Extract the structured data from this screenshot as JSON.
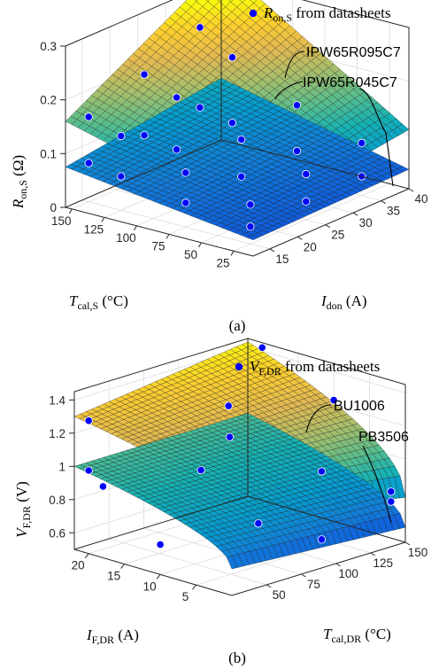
{
  "chart_data": [
    {
      "type": "surface3d",
      "panel_label": "(a)",
      "xlabel": {
        "main": "T",
        "sub": "cal,S",
        "unit": " (°C)"
      },
      "ylabel": {
        "main": "I",
        "sub": "don",
        "unit": " (A)"
      },
      "zlabel": {
        "main": "R",
        "sub": "on,S",
        "unit": " (Ω)"
      },
      "x_ticks": [
        "25",
        "50",
        "75",
        "100",
        "125",
        "150"
      ],
      "y_ticks": [
        "15",
        "20",
        "25",
        "30",
        "35",
        "40"
      ],
      "z_ticks": [
        "0",
        "0.1",
        "0.2",
        "0.3"
      ],
      "xlim": [
        10,
        155
      ],
      "ylim": [
        12,
        40
      ],
      "zlim": [
        0,
        0.3
      ],
      "legend": {
        "main": "R",
        "sub": "on,S",
        "rest": " from datasheets",
        "position": "top-right",
        "marker_color": "#0000ff"
      },
      "series": [
        {
          "name": "IPW65R095C7",
          "surface": {
            "x": [
              10,
              155
            ],
            "y": [
              12,
              40
            ],
            "z_low_T_low_I": 0.07,
            "z_high_T_low_I": 0.16,
            "z_low_T_high_I": 0.11,
            "z_high_T_high_I": 0.305
          },
          "points": [
            {
              "x": 25,
              "y": 15,
              "z": 0.073
            },
            {
              "x": 25,
              "y": 25,
              "z": 0.085
            },
            {
              "x": 25,
              "y": 35,
              "z": 0.098
            },
            {
              "x": 75,
              "y": 15,
              "z": 0.101
            },
            {
              "x": 75,
              "y": 25,
              "z": 0.118
            },
            {
              "x": 75,
              "y": 35,
              "z": 0.137
            },
            {
              "x": 125,
              "y": 15,
              "z": 0.138
            },
            {
              "x": 125,
              "y": 25,
              "z": 0.165
            },
            {
              "x": 125,
              "y": 35,
              "z": 0.195
            },
            {
              "x": 150,
              "y": 15,
              "z": 0.158
            },
            {
              "x": 150,
              "y": 25,
              "z": 0.192
            },
            {
              "x": 150,
              "y": 35,
              "z": 0.235
            }
          ]
        },
        {
          "name": "IPW65R045C7",
          "surface": {
            "x": [
              10,
              155
            ],
            "y": [
              12,
              40
            ],
            "z_low_T_low_I": 0.03,
            "z_high_T_low_I": 0.075,
            "z_low_T_high_I": 0.036,
            "z_high_T_high_I": 0.095
          },
          "points": [
            {
              "x": 25,
              "y": 15,
              "z": 0.032
            },
            {
              "x": 25,
              "y": 25,
              "z": 0.034
            },
            {
              "x": 25,
              "y": 35,
              "z": 0.036
            },
            {
              "x": 75,
              "y": 15,
              "z": 0.045
            },
            {
              "x": 75,
              "y": 25,
              "z": 0.049
            },
            {
              "x": 75,
              "y": 35,
              "z": 0.052
            },
            {
              "x": 125,
              "y": 15,
              "z": 0.063
            },
            {
              "x": 125,
              "y": 25,
              "z": 0.068
            },
            {
              "x": 125,
              "y": 35,
              "z": 0.073
            },
            {
              "x": 150,
              "y": 15,
              "z": 0.072
            },
            {
              "x": 150,
              "y": 25,
              "z": 0.079
            },
            {
              "x": 150,
              "y": 35,
              "z": 0.086
            }
          ]
        }
      ],
      "colormap": "parula",
      "grid": true
    },
    {
      "type": "surface3d",
      "panel_label": "(b)",
      "xlabel": {
        "main": "I",
        "sub": "F,DR",
        "unit": " (A)"
      },
      "ylabel": {
        "main": "T",
        "sub": "cal,DR",
        "unit": " (°C)"
      },
      "zlabel": {
        "main": "V",
        "sub": "F,DR",
        "unit": " (V)"
      },
      "x_ticks": [
        "5",
        "10",
        "15",
        "20"
      ],
      "y_ticks": [
        "50",
        "75",
        "100",
        "125",
        "150"
      ],
      "z_ticks": [
        "0.6",
        "0.8",
        "1",
        "1.2",
        "1.4"
      ],
      "xlim": [
        0,
        22
      ],
      "ylim": [
        25,
        150
      ],
      "zlim": [
        0.5,
        1.45
      ],
      "legend": {
        "main": "V",
        "sub": "F,DR",
        "rest": " from datasheets",
        "position": "top-right",
        "marker_color": "#0000ff"
      },
      "series": [
        {
          "name": "BU1006",
          "surface": {
            "x": [
              0,
              22
            ],
            "y": [
              25,
              150
            ],
            "z_high_I_low_T": 1.3,
            "z_high_I_high_T": 1.43,
            "z_low_I_low_T": 0.98,
            "z_low_I_high_T": 0.77
          },
          "points": [
            {
              "x": 20,
              "y": 25,
              "z": 1.3
            },
            {
              "x": 20,
              "y": 150,
              "z": 1.42
            },
            {
              "x": 10,
              "y": 75,
              "z": 1.2
            },
            {
              "x": 10,
              "y": 150,
              "z": 1.23
            },
            {
              "x": 2,
              "y": 100,
              "z": 1.03
            },
            {
              "x": 2,
              "y": 150,
              "z": 0.78
            },
            {
              "x": 15,
              "y": 100,
              "z": 1.26
            }
          ]
        },
        {
          "name": "PB3506",
          "surface": {
            "x": [
              0,
              22
            ],
            "y": [
              25,
              150
            ],
            "z_high_I_low_T": 1.0,
            "z_high_I_high_T": 1.0,
            "z_low_I_low_T": 0.66,
            "z_low_I_high_T": 0.59
          },
          "points": [
            {
              "x": 20,
              "y": 25,
              "z": 1.0
            },
            {
              "x": 18,
              "y": 25,
              "z": 0.93
            },
            {
              "x": 14,
              "y": 75,
              "z": 0.95
            },
            {
              "x": 10,
              "y": 25,
              "z": 0.68
            },
            {
              "x": 6,
              "y": 75,
              "z": 0.73
            },
            {
              "x": 2,
              "y": 100,
              "z": 0.62
            },
            {
              "x": 2,
              "y": 150,
              "z": 0.72
            }
          ]
        }
      ],
      "colormap": "parula",
      "grid": true
    }
  ]
}
